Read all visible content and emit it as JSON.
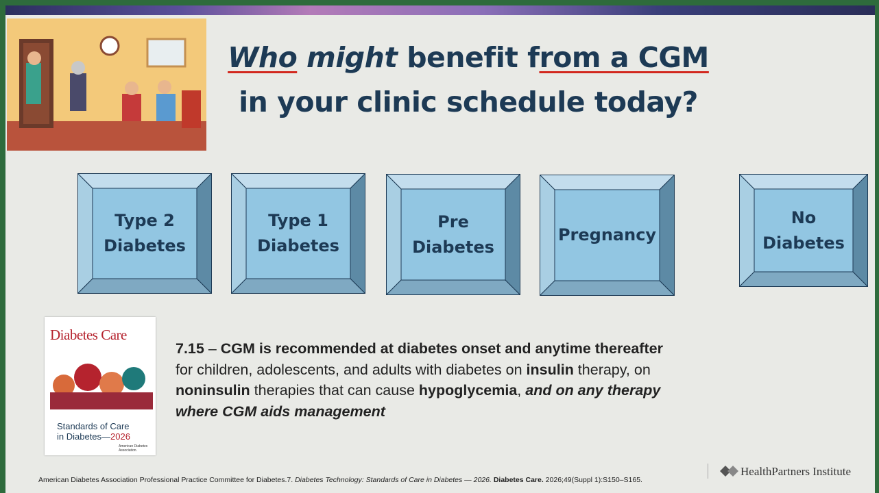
{
  "header": {
    "title_lines": [
      {
        "segments": [
          {
            "text": "Who",
            "italic": true,
            "underline": true
          },
          {
            "text": " might",
            "italic": true
          },
          {
            "text": " benefit f"
          },
          {
            "text": "rom a CGM",
            "underline": true
          }
        ]
      },
      {
        "segments": [
          {
            "text": "in your clinic schedule today?"
          }
        ]
      }
    ]
  },
  "boxes": [
    {
      "lines": [
        "Type 2",
        "Diabetes"
      ]
    },
    {
      "lines": [
        "Type 1",
        "Diabetes"
      ]
    },
    {
      "lines": [
        "Pre",
        "Diabetes"
      ]
    },
    {
      "lines": [
        "Pregnancy"
      ]
    },
    {
      "lines": [
        "No",
        "Diabetes"
      ]
    }
  ],
  "journal": {
    "name": "Diabetes Care",
    "standards": [
      {
        "segments": [
          {
            "text": "Standards of Care"
          }
        ]
      },
      {
        "segments": [
          {
            "text": "in Diabetes—"
          },
          {
            "text": "2026",
            "accent": true
          }
        ]
      }
    ],
    "publisher": "American Diabetes Association."
  },
  "recommendation": {
    "segments": [
      {
        "text": "7.15",
        "bold": true
      },
      {
        "text": " – "
      },
      {
        "text": "CGM is recommended at diabetes onset and anytime thereafter",
        "bold": true
      },
      {
        "text": " for children, adolescents, and adults with diabetes on "
      },
      {
        "text": "insulin",
        "bold": true
      },
      {
        "text": " therapy, on "
      },
      {
        "text": "noninsulin",
        "bold": true
      },
      {
        "text": " therapies that can cause "
      },
      {
        "text": "hypoglycemia",
        "bold": true
      },
      {
        "text": ", "
      },
      {
        "text": "and on any therapy where CGM aids management",
        "bold": true,
        "italic": true
      }
    ]
  },
  "citation": {
    "segments": [
      {
        "text": "American Diabetes Association Professional Practice Committee for Diabetes.7. "
      },
      {
        "text": "Diabetes Technology: Standards of Care in Diabetes — 2026.",
        "italic": true
      },
      {
        "text": "  "
      },
      {
        "text": "Diabetes Care.",
        "bold": true
      },
      {
        "text": " 2026;49(Suppl 1):S150–S165."
      }
    ]
  },
  "logo": {
    "text": "HealthPartners Institute"
  }
}
